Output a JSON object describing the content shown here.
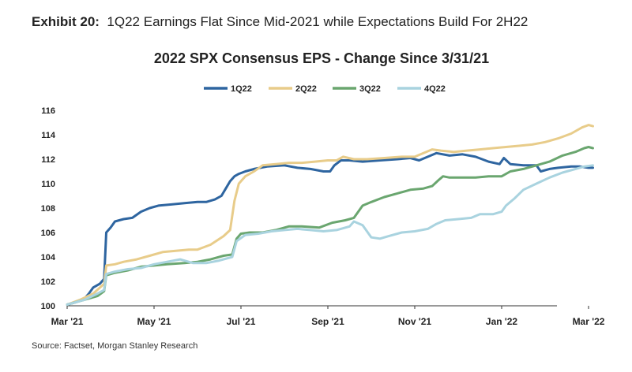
{
  "header": {
    "exhibit_label": "Exhibit 20:",
    "exhibit_title": "1Q22 Earnings Flat Since Mid-2021 while Expectations Build For 2H22"
  },
  "footer": {
    "source": "Source: Factset, Morgan Stanley Research"
  },
  "chart_data": {
    "type": "line",
    "title": "2022 SPX Consensus EPS - Change Since 3/31/21",
    "xlabel": "",
    "ylabel": "",
    "ylim": [
      100,
      116
    ],
    "yticks": [
      100,
      102,
      104,
      106,
      108,
      110,
      112,
      114,
      116
    ],
    "xlim": [
      0,
      11.2
    ],
    "xticks": [
      {
        "x": 0,
        "label": "Mar '21"
      },
      {
        "x": 2,
        "label": "May '21"
      },
      {
        "x": 4,
        "label": "Jul '21"
      },
      {
        "x": 6,
        "label": "Sep '21"
      },
      {
        "x": 8,
        "label": "Nov '21"
      },
      {
        "x": 10,
        "label": "Jan '22"
      },
      {
        "x": 12,
        "label": "Mar '22"
      }
    ],
    "grid": false,
    "legend": "top",
    "series": [
      {
        "name": "1Q22",
        "color": "#2e65a0",
        "points": [
          [
            0,
            100.1
          ],
          [
            0.2,
            100.3
          ],
          [
            0.4,
            100.6
          ],
          [
            0.5,
            101.0
          ],
          [
            0.6,
            101.5
          ],
          [
            0.75,
            101.8
          ],
          [
            0.85,
            102.2
          ],
          [
            0.9,
            106.0
          ],
          [
            1.0,
            106.4
          ],
          [
            1.1,
            106.9
          ],
          [
            1.3,
            107.1
          ],
          [
            1.5,
            107.2
          ],
          [
            1.7,
            107.7
          ],
          [
            1.9,
            108.0
          ],
          [
            2.1,
            108.2
          ],
          [
            2.4,
            108.3
          ],
          [
            2.7,
            108.4
          ],
          [
            3.0,
            108.5
          ],
          [
            3.2,
            108.5
          ],
          [
            3.4,
            108.7
          ],
          [
            3.55,
            109.0
          ],
          [
            3.65,
            109.6
          ],
          [
            3.75,
            110.2
          ],
          [
            3.85,
            110.6
          ],
          [
            3.95,
            110.8
          ],
          [
            4.1,
            111.0
          ],
          [
            4.3,
            111.2
          ],
          [
            4.6,
            111.4
          ],
          [
            5.0,
            111.5
          ],
          [
            5.3,
            111.3
          ],
          [
            5.6,
            111.2
          ],
          [
            5.9,
            111.0
          ],
          [
            6.05,
            111.0
          ],
          [
            6.15,
            111.5
          ],
          [
            6.3,
            111.9
          ],
          [
            6.5,
            111.9
          ],
          [
            6.8,
            111.8
          ],
          [
            7.2,
            111.9
          ],
          [
            7.6,
            112.0
          ],
          [
            7.9,
            112.1
          ],
          [
            8.1,
            111.9
          ],
          [
            8.3,
            112.2
          ],
          [
            8.5,
            112.5
          ],
          [
            8.8,
            112.3
          ],
          [
            9.1,
            112.4
          ],
          [
            9.4,
            112.2
          ],
          [
            9.7,
            111.8
          ],
          [
            9.95,
            111.6
          ],
          [
            10.05,
            112.1
          ],
          [
            10.2,
            111.6
          ],
          [
            10.5,
            111.5
          ],
          [
            10.8,
            111.5
          ],
          [
            10.9,
            111.0
          ],
          [
            11.1,
            111.2
          ],
          [
            11.3,
            111.3
          ],
          [
            11.6,
            111.4
          ],
          [
            11.8,
            111.4
          ],
          [
            12.0,
            111.3
          ],
          [
            12.1,
            111.3
          ]
        ]
      },
      {
        "name": "2Q22",
        "color": "#e8cc8a",
        "points": [
          [
            0,
            100.1
          ],
          [
            0.3,
            100.5
          ],
          [
            0.6,
            101.0
          ],
          [
            0.85,
            101.8
          ],
          [
            0.9,
            103.3
          ],
          [
            1.1,
            103.4
          ],
          [
            1.3,
            103.6
          ],
          [
            1.6,
            103.8
          ],
          [
            1.9,
            104.1
          ],
          [
            2.2,
            104.4
          ],
          [
            2.5,
            104.5
          ],
          [
            2.8,
            104.6
          ],
          [
            3.0,
            104.6
          ],
          [
            3.3,
            105.0
          ],
          [
            3.6,
            105.7
          ],
          [
            3.75,
            106.2
          ],
          [
            3.85,
            108.6
          ],
          [
            3.95,
            110.0
          ],
          [
            4.1,
            110.6
          ],
          [
            4.3,
            111.0
          ],
          [
            4.5,
            111.5
          ],
          [
            4.8,
            111.6
          ],
          [
            5.1,
            111.7
          ],
          [
            5.4,
            111.7
          ],
          [
            5.7,
            111.8
          ],
          [
            6.0,
            111.9
          ],
          [
            6.2,
            111.9
          ],
          [
            6.35,
            112.2
          ],
          [
            6.6,
            112.0
          ],
          [
            6.9,
            112.0
          ],
          [
            7.3,
            112.1
          ],
          [
            7.7,
            112.2
          ],
          [
            8.0,
            112.2
          ],
          [
            8.2,
            112.5
          ],
          [
            8.4,
            112.8
          ],
          [
            8.6,
            112.7
          ],
          [
            8.9,
            112.6
          ],
          [
            9.2,
            112.7
          ],
          [
            9.5,
            112.8
          ],
          [
            9.8,
            112.9
          ],
          [
            10.1,
            113.0
          ],
          [
            10.4,
            113.1
          ],
          [
            10.7,
            113.2
          ],
          [
            11.0,
            113.4
          ],
          [
            11.3,
            113.7
          ],
          [
            11.6,
            114.1
          ],
          [
            11.85,
            114.6
          ],
          [
            12.0,
            114.8
          ],
          [
            12.1,
            114.7
          ]
        ]
      },
      {
        "name": "3Q22",
        "color": "#6aa66f",
        "points": [
          [
            0,
            100.1
          ],
          [
            0.4,
            100.5
          ],
          [
            0.7,
            100.8
          ],
          [
            0.85,
            101.2
          ],
          [
            0.9,
            102.5
          ],
          [
            1.1,
            102.7
          ],
          [
            1.4,
            102.9
          ],
          [
            1.7,
            103.2
          ],
          [
            2.0,
            103.3
          ],
          [
            2.3,
            103.4
          ],
          [
            2.7,
            103.5
          ],
          [
            3.0,
            103.6
          ],
          [
            3.3,
            103.8
          ],
          [
            3.6,
            104.1
          ],
          [
            3.8,
            104.2
          ],
          [
            3.9,
            105.5
          ],
          [
            4.0,
            105.9
          ],
          [
            4.2,
            106.0
          ],
          [
            4.5,
            106.0
          ],
          [
            4.8,
            106.2
          ],
          [
            5.1,
            106.5
          ],
          [
            5.4,
            106.5
          ],
          [
            5.8,
            106.4
          ],
          [
            6.1,
            106.8
          ],
          [
            6.4,
            107.0
          ],
          [
            6.6,
            107.2
          ],
          [
            6.8,
            108.2
          ],
          [
            7.0,
            108.5
          ],
          [
            7.3,
            108.9
          ],
          [
            7.6,
            109.2
          ],
          [
            7.9,
            109.5
          ],
          [
            8.2,
            109.6
          ],
          [
            8.4,
            109.8
          ],
          [
            8.55,
            110.3
          ],
          [
            8.65,
            110.6
          ],
          [
            8.8,
            110.5
          ],
          [
            9.1,
            110.5
          ],
          [
            9.4,
            110.5
          ],
          [
            9.7,
            110.6
          ],
          [
            10.0,
            110.6
          ],
          [
            10.2,
            111.0
          ],
          [
            10.5,
            111.2
          ],
          [
            10.8,
            111.5
          ],
          [
            11.1,
            111.8
          ],
          [
            11.4,
            112.3
          ],
          [
            11.7,
            112.6
          ],
          [
            11.9,
            112.9
          ],
          [
            12.0,
            113.0
          ],
          [
            12.1,
            112.9
          ]
        ]
      },
      {
        "name": "4Q22",
        "color": "#a9d3df",
        "points": [
          [
            0,
            100.1
          ],
          [
            0.4,
            100.5
          ],
          [
            0.7,
            101.0
          ],
          [
            0.85,
            101.3
          ],
          [
            0.9,
            102.6
          ],
          [
            1.1,
            102.8
          ],
          [
            1.4,
            103.0
          ],
          [
            1.7,
            103.1
          ],
          [
            2.0,
            103.4
          ],
          [
            2.3,
            103.6
          ],
          [
            2.6,
            103.8
          ],
          [
            2.9,
            103.5
          ],
          [
            3.2,
            103.5
          ],
          [
            3.5,
            103.7
          ],
          [
            3.8,
            104.0
          ],
          [
            3.9,
            105.3
          ],
          [
            4.1,
            105.8
          ],
          [
            4.4,
            105.9
          ],
          [
            4.7,
            106.1
          ],
          [
            5.0,
            106.2
          ],
          [
            5.3,
            106.3
          ],
          [
            5.6,
            106.2
          ],
          [
            5.9,
            106.1
          ],
          [
            6.2,
            106.2
          ],
          [
            6.5,
            106.5
          ],
          [
            6.6,
            106.9
          ],
          [
            6.8,
            106.6
          ],
          [
            7.0,
            105.6
          ],
          [
            7.2,
            105.5
          ],
          [
            7.4,
            105.7
          ],
          [
            7.7,
            106.0
          ],
          [
            8.0,
            106.1
          ],
          [
            8.3,
            106.3
          ],
          [
            8.5,
            106.7
          ],
          [
            8.7,
            107.0
          ],
          [
            9.0,
            107.1
          ],
          [
            9.3,
            107.2
          ],
          [
            9.5,
            107.5
          ],
          [
            9.8,
            107.5
          ],
          [
            10.0,
            107.7
          ],
          [
            10.1,
            108.2
          ],
          [
            10.3,
            108.8
          ],
          [
            10.5,
            109.5
          ],
          [
            10.8,
            110.0
          ],
          [
            11.1,
            110.5
          ],
          [
            11.4,
            110.9
          ],
          [
            11.7,
            111.2
          ],
          [
            11.9,
            111.4
          ],
          [
            12.1,
            111.5
          ]
        ]
      }
    ]
  }
}
